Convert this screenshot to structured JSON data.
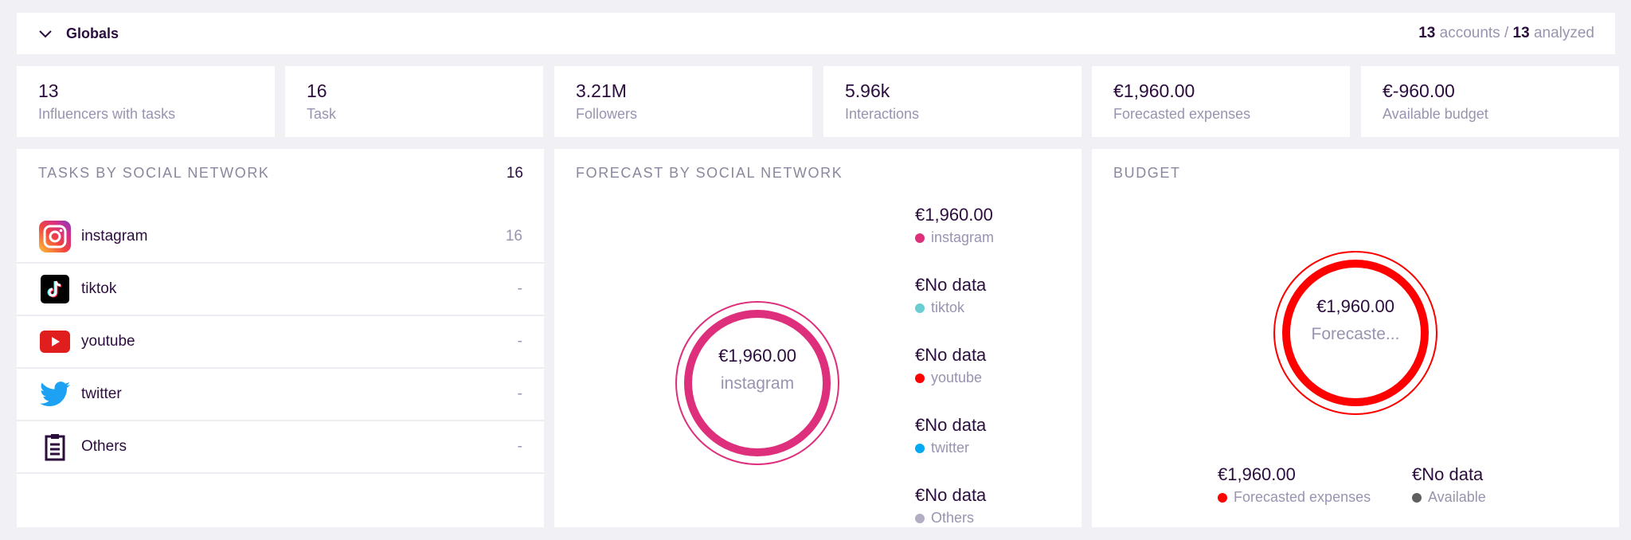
{
  "header": {
    "title": "Globals",
    "accounts_count": "13",
    "accounts_label": "accounts /",
    "analyzed_count": "13",
    "analyzed_label": "analyzed"
  },
  "stats": [
    {
      "value": "13",
      "label": "Influencers with tasks"
    },
    {
      "value": "16",
      "label": "Task"
    },
    {
      "value": "3.21M",
      "label": "Followers"
    },
    {
      "value": "5.96k",
      "label": "Interactions"
    },
    {
      "value": "€1,960.00",
      "label": "Forecasted expenses"
    },
    {
      "value": "€-960.00",
      "label": "Available budget"
    }
  ],
  "tasks": {
    "title": "TASKS BY SOCIAL NETWORK",
    "total": "16",
    "rows": [
      {
        "label": "instagram",
        "count": "16"
      },
      {
        "label": "tiktok",
        "count": "-"
      },
      {
        "label": "youtube",
        "count": "-"
      },
      {
        "label": "twitter",
        "count": "-"
      },
      {
        "label": "Others",
        "count": "-"
      }
    ]
  },
  "forecast": {
    "title": "FORECAST BY SOCIAL NETWORK",
    "center_value": "€1,960.00",
    "center_label": "instagram",
    "legend": [
      {
        "value": "€1,960.00",
        "label": "instagram",
        "color": "#de2f7d"
      },
      {
        "value": "€No data",
        "label": "tiktok",
        "color": "#69cdd1"
      },
      {
        "value": "€No data",
        "label": "youtube",
        "color": "#ff0000"
      },
      {
        "value": "€No data",
        "label": "twitter",
        "color": "#03a9f4"
      },
      {
        "value": "€No data",
        "label": "Others",
        "color": "#b3adc4"
      }
    ]
  },
  "budget": {
    "title": "BUDGET",
    "center_value": "€1,960.00",
    "center_label": "Forecaste...",
    "legend": [
      {
        "value": "€1,960.00",
        "label": "Forecasted expenses",
        "color": "#ff0000"
      },
      {
        "value": "€No data",
        "label": "Available",
        "color": "#5f5f5f"
      }
    ]
  }
}
